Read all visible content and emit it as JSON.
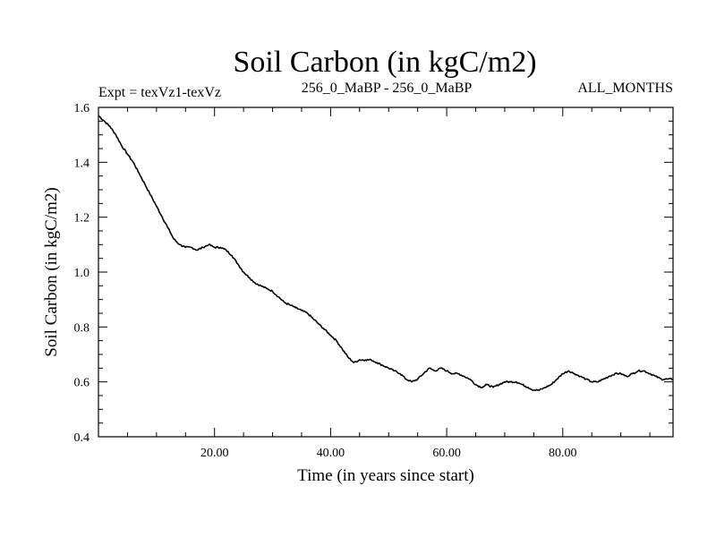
{
  "chart_data": {
    "type": "line",
    "title": "Soil Carbon (in kgC/m2)",
    "subtitle_left": "Expt = texVz1-texVz",
    "subtitle_center": "256_0_MaBP - 256_0_MaBP",
    "subtitle_right": "ALL_MONTHS",
    "xlabel": "Time (in years since start)",
    "ylabel": "Soil Carbon (in kgC/m2)",
    "xlim": [
      0,
      99
    ],
    "ylim": [
      0.4,
      1.6
    ],
    "xticks": [
      20,
      40,
      60,
      80
    ],
    "xtick_labels": [
      "20.00",
      "40.00",
      "60.00",
      "80.00"
    ],
    "yticks": [
      0.4,
      0.6,
      0.8,
      1.0,
      1.2,
      1.4,
      1.6
    ],
    "ytick_labels": [
      "0.4",
      "0.6",
      "0.8",
      "1.0",
      "1.2",
      "1.4",
      "1.6"
    ],
    "series": [
      {
        "name": "Soil Carbon",
        "color": "#000000",
        "x": [
          0,
          1,
          2,
          3,
          4,
          5,
          6,
          7,
          8,
          9,
          10,
          11,
          12,
          13,
          14,
          15,
          16,
          17,
          18,
          19,
          20,
          21,
          22,
          23,
          24,
          25,
          26,
          27,
          28,
          29,
          30,
          31,
          32,
          33,
          34,
          35,
          36,
          37,
          38,
          39,
          40,
          41,
          42,
          43,
          44,
          45,
          46,
          47,
          48,
          49,
          50,
          51,
          52,
          53,
          54,
          55,
          56,
          57,
          58,
          59,
          60,
          61,
          62,
          63,
          64,
          65,
          66,
          67,
          68,
          69,
          70,
          71,
          72,
          73,
          74,
          75,
          76,
          77,
          78,
          79,
          80,
          81,
          82,
          83,
          84,
          85,
          86,
          87,
          88,
          89,
          90,
          91,
          92,
          93,
          94,
          95,
          96,
          97,
          98,
          99
        ],
        "values": [
          1.57,
          1.55,
          1.53,
          1.5,
          1.46,
          1.43,
          1.4,
          1.36,
          1.32,
          1.28,
          1.24,
          1.2,
          1.16,
          1.12,
          1.1,
          1.09,
          1.09,
          1.08,
          1.09,
          1.1,
          1.09,
          1.09,
          1.08,
          1.06,
          1.03,
          1.0,
          0.98,
          0.96,
          0.95,
          0.94,
          0.93,
          0.91,
          0.89,
          0.88,
          0.87,
          0.86,
          0.85,
          0.83,
          0.81,
          0.79,
          0.77,
          0.75,
          0.72,
          0.69,
          0.67,
          0.68,
          0.68,
          0.68,
          0.67,
          0.66,
          0.65,
          0.64,
          0.63,
          0.61,
          0.6,
          0.61,
          0.63,
          0.65,
          0.64,
          0.65,
          0.64,
          0.63,
          0.63,
          0.62,
          0.61,
          0.59,
          0.58,
          0.59,
          0.58,
          0.59,
          0.6,
          0.6,
          0.6,
          0.59,
          0.58,
          0.57,
          0.57,
          0.58,
          0.59,
          0.61,
          0.63,
          0.64,
          0.63,
          0.62,
          0.61,
          0.6,
          0.6,
          0.61,
          0.62,
          0.63,
          0.63,
          0.62,
          0.63,
          0.64,
          0.64,
          0.63,
          0.62,
          0.61,
          0.61,
          0.61
        ]
      }
    ]
  }
}
